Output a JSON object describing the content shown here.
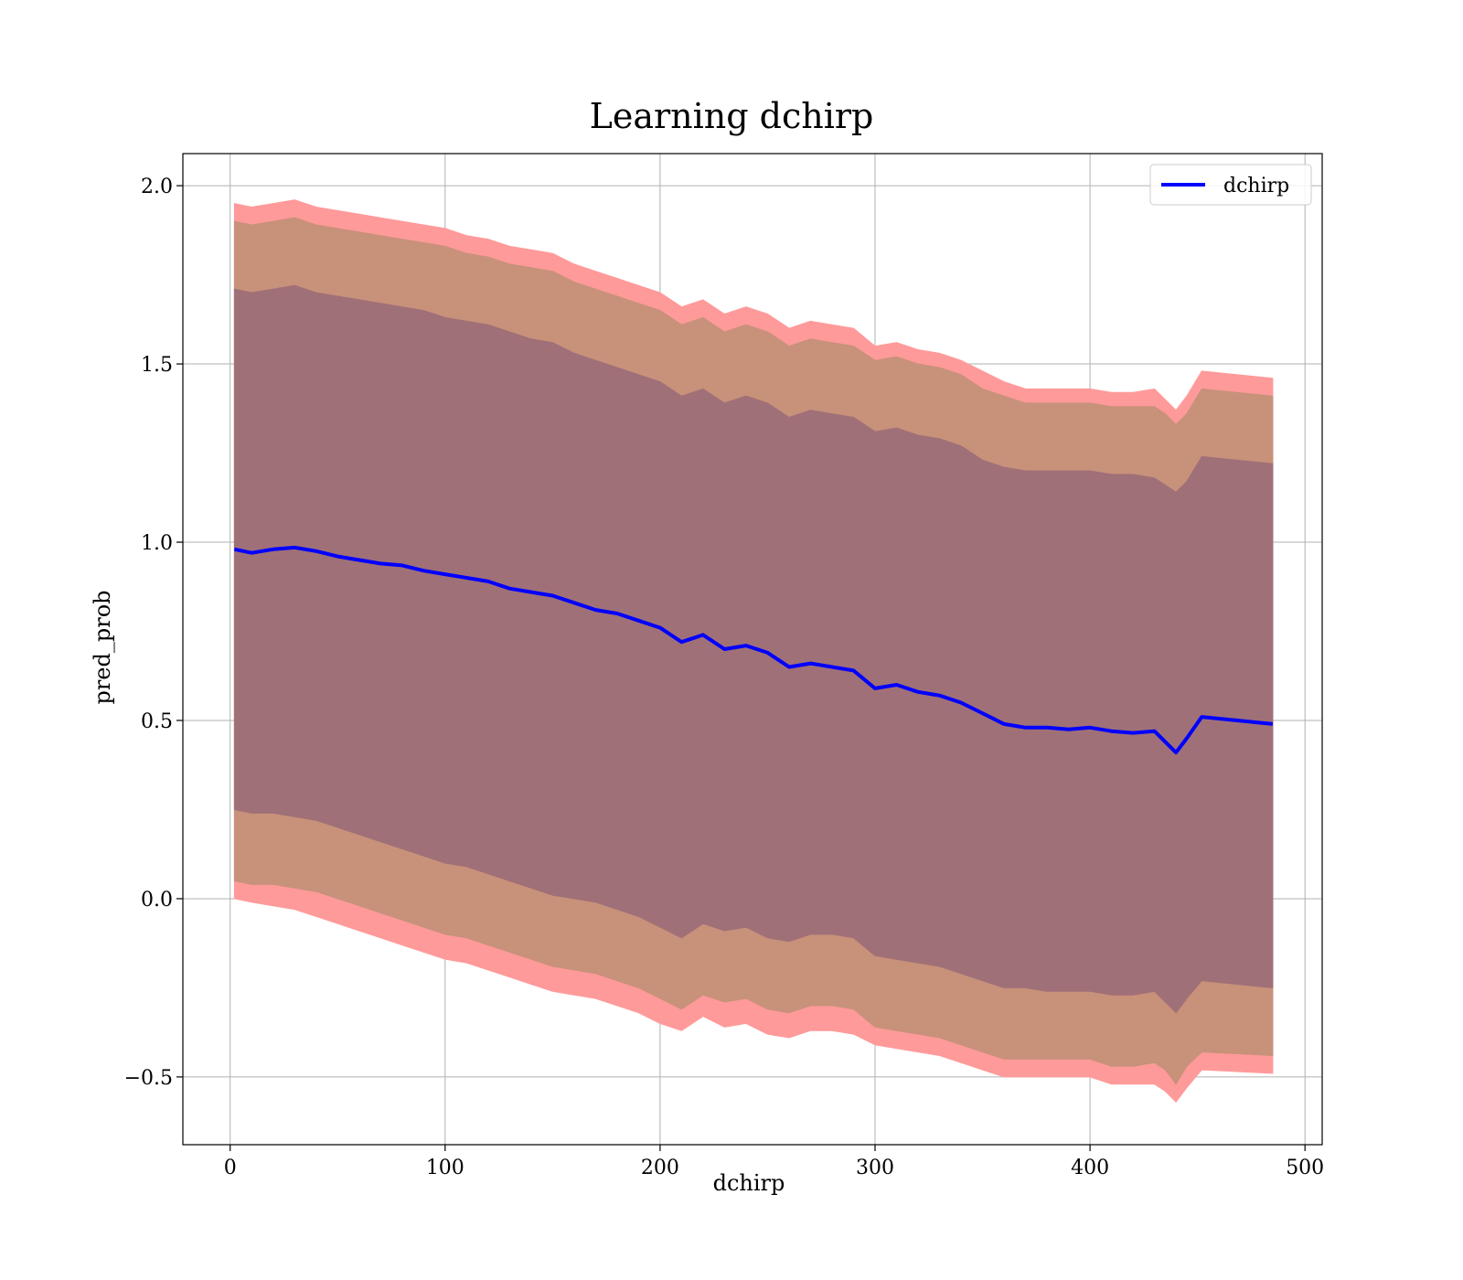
{
  "chart_data": {
    "type": "line",
    "title": "Learning dchirp",
    "xlabel": "dchirp",
    "ylabel": "pred_prob",
    "xlim": [
      -22,
      508
    ],
    "ylim": [
      -0.69,
      2.09
    ],
    "xticks": [
      0,
      100,
      200,
      300,
      400,
      500
    ],
    "xtick_labels": [
      "0",
      "100",
      "200",
      "300",
      "400",
      "500"
    ],
    "yticks": [
      -0.5,
      0.0,
      0.5,
      1.0,
      1.5,
      2.0
    ],
    "ytick_labels": [
      "−0.5",
      "0.0",
      "0.5",
      "1.0",
      "1.5",
      "2.0"
    ],
    "grid": true,
    "legend": {
      "position": "upper right",
      "entries": [
        "dchirp"
      ]
    },
    "colors": {
      "line": "#0000ff",
      "band_outer": "#ff9a9a",
      "band_middle": "#c8917a",
      "band_inner": "#a07078",
      "grid": "#b0b0b0"
    },
    "x": [
      2,
      10,
      20,
      30,
      40,
      50,
      60,
      70,
      80,
      90,
      100,
      110,
      120,
      130,
      140,
      150,
      160,
      170,
      180,
      190,
      200,
      210,
      220,
      230,
      240,
      250,
      260,
      270,
      280,
      290,
      300,
      310,
      320,
      330,
      340,
      350,
      360,
      370,
      380,
      390,
      400,
      410,
      420,
      430,
      435,
      440,
      445,
      452,
      485
    ],
    "series": [
      {
        "name": "dchirp",
        "values": [
          0.98,
          0.97,
          0.98,
          0.985,
          0.975,
          0.96,
          0.95,
          0.94,
          0.935,
          0.92,
          0.91,
          0.9,
          0.89,
          0.87,
          0.86,
          0.85,
          0.83,
          0.81,
          0.8,
          0.78,
          0.76,
          0.72,
          0.74,
          0.7,
          0.71,
          0.69,
          0.65,
          0.66,
          0.65,
          0.64,
          0.59,
          0.6,
          0.58,
          0.57,
          0.55,
          0.52,
          0.49,
          0.48,
          0.48,
          0.475,
          0.48,
          0.47,
          0.465,
          0.47,
          0.44,
          0.41,
          0.45,
          0.51,
          0.49
        ]
      }
    ],
    "bands": [
      {
        "lower": [
          0.0,
          -0.01,
          -0.02,
          -0.03,
          -0.05,
          -0.07,
          -0.09,
          -0.11,
          -0.13,
          -0.15,
          -0.17,
          -0.18,
          -0.2,
          -0.22,
          -0.24,
          -0.26,
          -0.27,
          -0.28,
          -0.3,
          -0.32,
          -0.35,
          -0.37,
          -0.33,
          -0.36,
          -0.35,
          -0.38,
          -0.39,
          -0.37,
          -0.37,
          -0.38,
          -0.41,
          -0.42,
          -0.43,
          -0.44,
          -0.46,
          -0.48,
          -0.5,
          -0.5,
          -0.5,
          -0.5,
          -0.5,
          -0.52,
          -0.52,
          -0.52,
          -0.54,
          -0.57,
          -0.53,
          -0.48,
          -0.49
        ],
        "upper": [
          1.95,
          1.94,
          1.95,
          1.96,
          1.94,
          1.93,
          1.92,
          1.91,
          1.9,
          1.89,
          1.88,
          1.86,
          1.85,
          1.83,
          1.82,
          1.81,
          1.78,
          1.76,
          1.74,
          1.72,
          1.7,
          1.66,
          1.68,
          1.64,
          1.66,
          1.64,
          1.6,
          1.62,
          1.61,
          1.6,
          1.55,
          1.56,
          1.54,
          1.53,
          1.51,
          1.48,
          1.45,
          1.43,
          1.43,
          1.43,
          1.43,
          1.42,
          1.42,
          1.43,
          1.4,
          1.37,
          1.41,
          1.48,
          1.46
        ]
      },
      {
        "lower": [
          0.05,
          0.04,
          0.04,
          0.03,
          0.02,
          0.0,
          -0.02,
          -0.04,
          -0.06,
          -0.08,
          -0.1,
          -0.11,
          -0.13,
          -0.15,
          -0.17,
          -0.19,
          -0.2,
          -0.21,
          -0.23,
          -0.25,
          -0.28,
          -0.31,
          -0.27,
          -0.29,
          -0.28,
          -0.31,
          -0.32,
          -0.3,
          -0.3,
          -0.31,
          -0.36,
          -0.37,
          -0.38,
          -0.39,
          -0.41,
          -0.43,
          -0.45,
          -0.45,
          -0.45,
          -0.45,
          -0.45,
          -0.47,
          -0.47,
          -0.46,
          -0.48,
          -0.52,
          -0.47,
          -0.43,
          -0.44
        ],
        "upper": [
          1.9,
          1.89,
          1.9,
          1.91,
          1.89,
          1.88,
          1.87,
          1.86,
          1.85,
          1.84,
          1.83,
          1.81,
          1.8,
          1.78,
          1.77,
          1.76,
          1.73,
          1.71,
          1.69,
          1.67,
          1.65,
          1.61,
          1.63,
          1.59,
          1.61,
          1.59,
          1.55,
          1.57,
          1.56,
          1.55,
          1.51,
          1.52,
          1.5,
          1.49,
          1.47,
          1.43,
          1.41,
          1.39,
          1.39,
          1.39,
          1.39,
          1.38,
          1.38,
          1.38,
          1.36,
          1.33,
          1.36,
          1.43,
          1.41
        ]
      },
      {
        "lower": [
          0.25,
          0.24,
          0.24,
          0.23,
          0.22,
          0.2,
          0.18,
          0.16,
          0.14,
          0.12,
          0.1,
          0.09,
          0.07,
          0.05,
          0.03,
          0.01,
          0.0,
          -0.01,
          -0.03,
          -0.05,
          -0.08,
          -0.11,
          -0.07,
          -0.09,
          -0.08,
          -0.11,
          -0.12,
          -0.1,
          -0.1,
          -0.11,
          -0.16,
          -0.17,
          -0.18,
          -0.19,
          -0.21,
          -0.23,
          -0.25,
          -0.25,
          -0.26,
          -0.26,
          -0.26,
          -0.27,
          -0.27,
          -0.26,
          -0.29,
          -0.32,
          -0.28,
          -0.23,
          -0.25
        ],
        "upper": [
          1.71,
          1.7,
          1.71,
          1.72,
          1.7,
          1.69,
          1.68,
          1.67,
          1.66,
          1.65,
          1.63,
          1.62,
          1.61,
          1.59,
          1.57,
          1.56,
          1.53,
          1.51,
          1.49,
          1.47,
          1.45,
          1.41,
          1.43,
          1.39,
          1.41,
          1.39,
          1.35,
          1.37,
          1.36,
          1.35,
          1.31,
          1.32,
          1.3,
          1.29,
          1.27,
          1.23,
          1.21,
          1.2,
          1.2,
          1.2,
          1.2,
          1.19,
          1.19,
          1.18,
          1.16,
          1.14,
          1.17,
          1.24,
          1.22
        ]
      }
    ]
  }
}
